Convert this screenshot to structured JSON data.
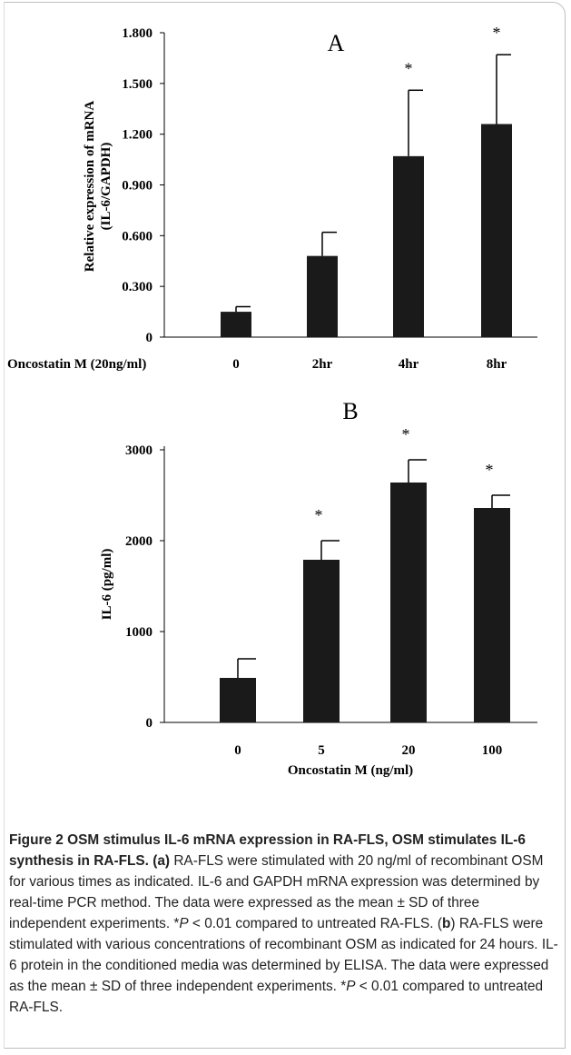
{
  "chart_data": [
    {
      "type": "bar",
      "panel_label": "A",
      "title": "",
      "xlabel": "Oncostatin M (20ng/ml)",
      "ylabel_line1": "Relative expression of mRNA",
      "ylabel_line2": "(IL-6/GAPDH)",
      "categories": [
        "0",
        "2hr",
        "4hr",
        "8hr"
      ],
      "values": [
        0.15,
        0.48,
        1.07,
        1.26
      ],
      "errors": [
        0.03,
        0.14,
        0.39,
        0.41
      ],
      "significance": [
        "",
        "",
        "*",
        "*"
      ],
      "yticks": [
        "0",
        "0.300",
        "0.600",
        "0.900",
        "1.200",
        "1.500",
        "1.800"
      ],
      "ylim": [
        0,
        1.8
      ],
      "grid": false,
      "bar_color": "#1a1a1a"
    },
    {
      "type": "bar",
      "panel_label": "B",
      "title": "",
      "xlabel": "Oncostatin M (ng/ml)",
      "ylabel_line1": "IL-6 (pg/ml)",
      "categories": [
        "0",
        "5",
        "20",
        "100"
      ],
      "values": [
        490,
        1790,
        2640,
        2360
      ],
      "errors": [
        210,
        210,
        250,
        140
      ],
      "significance": [
        "",
        "*",
        "*",
        "*"
      ],
      "yticks": [
        "0",
        "1000",
        "2000",
        "3000"
      ],
      "ylim": [
        0,
        3000
      ],
      "grid": false,
      "bar_color": "#1a1a1a"
    }
  ],
  "caption": {
    "bold_text": "Figure 2 OSM stimulus IL-6 mRNA expression in RA-FLS, OSM stimulates IL-6 synthesis in RA-FLS.",
    "a_label": "(a)",
    "a_text": "RA-FLS were stimulated with 20 ng/ml of recombinant OSM for various times as indicated. IL-6 and GAPDH mRNA expression was determined by real-time PCR method. The data were expressed as the mean ± SD of three independent experiments. *",
    "a_p": "P",
    "a_text_end": " < 0.01 compared to untreated RA-FLS.",
    "b_open": "(",
    "b_label": "b",
    "b_close": ")",
    "b_text": " RA-FLS were stimulated with various concentrations of recombinant OSM as indicated for 24 hours. IL-6 protein in the conditioned media was determined by ELISA. The data were expressed as the mean ± SD of three independent experiments. *",
    "b_p": "P",
    "b_text_end": " < 0.01 compared to untreated RA-FLS."
  }
}
